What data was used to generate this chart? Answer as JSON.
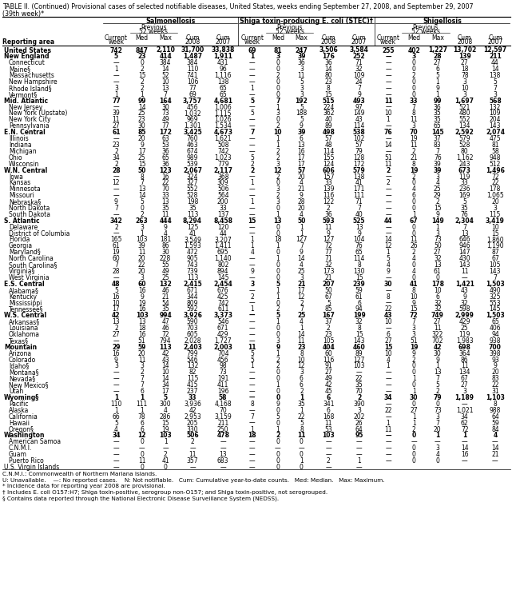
{
  "title_line1": "TABLE II. (Continued) Provisional cases of selected notifiable diseases, United States, weeks ending September 27, 2008, and September 29, 2007",
  "title_line2": "(39th week)*",
  "diseases": [
    "Salmonellosis",
    "Shiga toxin-producing E. coli (STEC)†",
    "Shigellosis"
  ],
  "reporting_areas": [
    "United States",
    "New England",
    "Connecticut",
    "Maine§",
    "Massachusetts",
    "New Hampshire",
    "Rhode Island§",
    "Vermont§",
    "Mid. Atlantic",
    "New Jersey",
    "New York (Upstate)",
    "New York City",
    "Pennsylvania",
    "E.N. Central",
    "Illinois",
    "Indiana",
    "Michigan",
    "Ohio",
    "Wisconsin",
    "W.N. Central",
    "Iowa",
    "Kansas",
    "Minnesota",
    "Missouri",
    "Nebraska§",
    "North Dakota",
    "South Dakota",
    "S. Atlantic",
    "Delaware",
    "District of Columbia",
    "Florida",
    "Georgia",
    "Maryland§",
    "North Carolina",
    "South Carolina§",
    "Virginia§",
    "West Virginia",
    "E.S. Central",
    "Alabama§",
    "Kentucky",
    "Mississippi",
    "Tennessee§",
    "W.S. Central",
    "Arkansas§",
    "Louisiana",
    "Oklahoma",
    "Texas§",
    "Mountain",
    "Arizona",
    "Colorado",
    "Idaho§",
    "Montana§",
    "Nevada§",
    "New Mexico§",
    "Utah",
    "Wyoming§",
    "Pacific",
    "Alaska",
    "California",
    "Hawaii",
    "Oregon§",
    "Washington",
    "American Samoa",
    "C.N.M.I.",
    "Guam",
    "Puerto Rico",
    "U.S. Virgin Islands"
  ],
  "bold_rows": [
    0,
    1,
    8,
    13,
    19,
    27,
    37,
    42,
    47,
    55,
    61
  ],
  "indent_rows": [
    2,
    3,
    4,
    5,
    6,
    7,
    9,
    10,
    11,
    12,
    14,
    15,
    16,
    17,
    18,
    20,
    21,
    22,
    23,
    24,
    25,
    26,
    28,
    29,
    30,
    31,
    32,
    33,
    34,
    35,
    36,
    38,
    39,
    40,
    41,
    43,
    44,
    45,
    46,
    48,
    49,
    50,
    51,
    52,
    53,
    54,
    56,
    57,
    58,
    59,
    60,
    62,
    63,
    64,
    65
  ],
  "salmonellosis": [
    [
      "742",
      "847",
      "2,110",
      "31,700",
      "33,838"
    ],
    [
      "5",
      "23",
      "414",
      "1,487",
      "1,911"
    ],
    [
      "—",
      "0",
      "384",
      "384",
      "431"
    ],
    [
      "1",
      "2",
      "14",
      "110",
      "96"
    ],
    [
      "—",
      "15",
      "52",
      "741",
      "1,116"
    ],
    [
      "—",
      "2",
      "10",
      "106",
      "138"
    ],
    [
      "3",
      "2",
      "13",
      "77",
      "65"
    ],
    [
      "1",
      "1",
      "7",
      "69",
      "65"
    ],
    [
      "77",
      "99",
      "164",
      "3,757",
      "4,681"
    ],
    [
      "—",
      "14",
      "30",
      "456",
      "1,006"
    ],
    [
      "39",
      "25",
      "73",
      "1,032",
      "1,115"
    ],
    [
      "11",
      "23",
      "49",
      "969",
      "1,026"
    ],
    [
      "27",
      "30",
      "77",
      "1,301",
      "1,534"
    ],
    [
      "61",
      "85",
      "172",
      "3,425",
      "4,673"
    ],
    [
      "—",
      "20",
      "63",
      "760",
      "1,621"
    ],
    [
      "23",
      "9",
      "53",
      "463",
      "508"
    ],
    [
      "2",
      "17",
      "36",
      "674",
      "742"
    ],
    [
      "34",
      "25",
      "65",
      "989",
      "1,023"
    ],
    [
      "2",
      "15",
      "36",
      "539",
      "779"
    ],
    [
      "28",
      "50",
      "123",
      "2,067",
      "2,117"
    ],
    [
      "—",
      "8",
      "16",
      "324",
      "368"
    ],
    [
      "12",
      "7",
      "22",
      "327",
      "309"
    ],
    [
      "—",
      "13",
      "70",
      "552",
      "506"
    ],
    [
      "—",
      "14",
      "33",
      "528",
      "564"
    ],
    [
      "9",
      "5",
      "13",
      "198",
      "200"
    ],
    [
      "7",
      "0",
      "35",
      "35",
      "33"
    ],
    [
      "—",
      "2",
      "11",
      "113",
      "137"
    ],
    [
      "342",
      "263",
      "444",
      "8,294",
      "8,458"
    ],
    [
      "2",
      "3",
      "9",
      "125",
      "120"
    ],
    [
      "—",
      "1",
      "4",
      "41",
      "44"
    ],
    [
      "165",
      "103",
      "181",
      "3,549",
      "3,207"
    ],
    [
      "61",
      "39",
      "86",
      "1,593",
      "1,411"
    ],
    [
      "19",
      "11",
      "30",
      "472",
      "695"
    ],
    [
      "60",
      "20",
      "228",
      "905",
      "1,140"
    ],
    [
      "7",
      "22",
      "55",
      "743",
      "802"
    ],
    [
      "28",
      "20",
      "49",
      "739",
      "894"
    ],
    [
      "—",
      "3",
      "25",
      "113",
      "145"
    ],
    [
      "48",
      "60",
      "132",
      "2,415",
      "2,454"
    ],
    [
      "5",
      "16",
      "46",
      "671",
      "676"
    ],
    [
      "16",
      "9",
      "21",
      "344",
      "425"
    ],
    [
      "10",
      "19",
      "54",
      "809",
      "742"
    ],
    [
      "17",
      "16",
      "35",
      "592",
      "611"
    ],
    [
      "42",
      "103",
      "994",
      "3,926",
      "3,373"
    ],
    [
      "13",
      "13",
      "47",
      "590",
      "546"
    ],
    [
      "2",
      "18",
      "46",
      "703",
      "671"
    ],
    [
      "27",
      "16",
      "72",
      "605",
      "429"
    ],
    [
      "—",
      "51",
      "794",
      "2,028",
      "1,727"
    ],
    [
      "29",
      "59",
      "113",
      "2,403",
      "2,003"
    ],
    [
      "16",
      "20",
      "42",
      "799",
      "704"
    ],
    [
      "9",
      "11",
      "43",
      "546",
      "456"
    ],
    [
      "3",
      "3",
      "14",
      "132",
      "98"
    ],
    [
      "—",
      "2",
      "10",
      "82",
      "73"
    ],
    [
      "—",
      "7",
      "14",
      "115",
      "191"
    ],
    [
      "—",
      "7",
      "34",
      "415",
      "411"
    ],
    [
      "—",
      "6",
      "17",
      "237",
      "196"
    ],
    [
      "1",
      "1",
      "5",
      "33",
      "58"
    ],
    [
      "110",
      "111",
      "300",
      "3,936",
      "4,168"
    ],
    [
      "1",
      "1",
      "4",
      "42",
      "70"
    ],
    [
      "66",
      "78",
      "286",
      "2,953",
      "3,159"
    ],
    [
      "5",
      "6",
      "15",
      "205",
      "211"
    ],
    [
      "4",
      "6",
      "19",
      "330",
      "250"
    ],
    [
      "34",
      "12",
      "103",
      "506",
      "478"
    ],
    [
      "—",
      "0",
      "1",
      "2",
      "—"
    ],
    [
      "—",
      "—",
      "—",
      "—",
      "—"
    ],
    [
      "—",
      "0",
      "2",
      "11",
      "13"
    ],
    [
      "—",
      "11",
      "41",
      "357",
      "683"
    ],
    [
      "—",
      "0",
      "0",
      "—",
      "—"
    ]
  ],
  "stec": [
    [
      "69",
      "81",
      "247",
      "3,506",
      "3,584"
    ],
    [
      "1",
      "3",
      "39",
      "176",
      "252"
    ],
    [
      "—",
      "0",
      "36",
      "36",
      "71"
    ],
    [
      "—",
      "0",
      "3",
      "14",
      "32"
    ],
    [
      "—",
      "2",
      "11",
      "80",
      "109"
    ],
    [
      "—",
      "0",
      "5",
      "23",
      "24"
    ],
    [
      "1",
      "0",
      "3",
      "8",
      "7"
    ],
    [
      "—",
      "0",
      "3",
      "15",
      "9"
    ],
    [
      "5",
      "7",
      "192",
      "515",
      "493"
    ],
    [
      "—",
      "1",
      "5",
      "224",
      "97"
    ],
    [
      "5",
      "3",
      "188",
      "362",
      "149"
    ],
    [
      "—",
      "0",
      "5",
      "40",
      "43"
    ],
    [
      "—",
      "2",
      "9",
      "89",
      "114"
    ],
    [
      "7",
      "10",
      "39",
      "498",
      "538"
    ],
    [
      "—",
      "1",
      "6",
      "57",
      "102"
    ],
    [
      "—",
      "1",
      "13",
      "48",
      "57"
    ],
    [
      "—",
      "2",
      "16",
      "114",
      "79"
    ],
    [
      "5",
      "2",
      "17",
      "155",
      "128"
    ],
    [
      "2",
      "3",
      "17",
      "124",
      "172"
    ],
    [
      "2",
      "12",
      "57",
      "606",
      "579"
    ],
    [
      "—",
      "2",
      "20",
      "157",
      "138"
    ],
    [
      "1",
      "0",
      "4",
      "33",
      "41"
    ],
    [
      "—",
      "3",
      "21",
      "139",
      "171"
    ],
    [
      "—",
      "2",
      "9",
      "116",
      "111"
    ],
    [
      "1",
      "3",
      "28",
      "122",
      "71"
    ],
    [
      "—",
      "0",
      "20",
      "2",
      "7"
    ],
    [
      "—",
      "1",
      "4",
      "36",
      "40"
    ],
    [
      "15",
      "13",
      "50",
      "593",
      "525"
    ],
    [
      "—",
      "0",
      "1",
      "11",
      "13"
    ],
    [
      "—",
      "0",
      "1",
      "9",
      "9"
    ],
    [
      "1",
      "18",
      "127",
      "127",
      "104"
    ],
    [
      "1",
      "1",
      "7",
      "72",
      "76"
    ],
    [
      "4",
      "0",
      "9",
      "77",
      "65"
    ],
    [
      "—",
      "1",
      "14",
      "71",
      "114"
    ],
    [
      "—",
      "0",
      "4",
      "32",
      "8"
    ],
    [
      "9",
      "0",
      "25",
      "173",
      "130"
    ],
    [
      "—",
      "0",
      "3",
      "21",
      "15"
    ],
    [
      "3",
      "5",
      "21",
      "207",
      "239"
    ],
    [
      "—",
      "1",
      "17",
      "50",
      "59"
    ],
    [
      "2",
      "1",
      "12",
      "67",
      "61"
    ],
    [
      "—",
      "0",
      "2",
      "5",
      "6"
    ],
    [
      "1",
      "2",
      "7",
      "85",
      "94"
    ],
    [
      "—",
      "5",
      "25",
      "167",
      "199"
    ],
    [
      "—",
      "1",
      "4",
      "37",
      "32"
    ],
    [
      "—",
      "0",
      "1",
      "2",
      "8"
    ],
    [
      "—",
      "0",
      "14",
      "23",
      "15"
    ],
    [
      "—",
      "3",
      "11",
      "105",
      "143"
    ],
    [
      "11",
      "9",
      "23",
      "404",
      "460"
    ],
    [
      "5",
      "1",
      "8",
      "60",
      "89"
    ],
    [
      "5",
      "2",
      "10",
      "116",
      "127"
    ],
    [
      "1",
      "2",
      "12",
      "91",
      "103"
    ],
    [
      "—",
      "0",
      "3",
      "27",
      "—"
    ],
    [
      "—",
      "0",
      "6",
      "49",
      "22"
    ],
    [
      "—",
      "1",
      "6",
      "42",
      "35"
    ],
    [
      "—",
      "0",
      "2",
      "45",
      "70"
    ],
    [
      "—",
      "0",
      "1",
      "6",
      "2"
    ],
    [
      "8",
      "9",
      "35",
      "341",
      "390"
    ],
    [
      "—",
      "0",
      "1",
      "6",
      "3"
    ],
    [
      "7",
      "5",
      "22",
      "168",
      "202"
    ],
    [
      "—",
      "0",
      "5",
      "11",
      "26"
    ],
    [
      "1",
      "1",
      "8",
      "53",
      "64"
    ],
    [
      "18",
      "2",
      "11",
      "103",
      "95"
    ],
    [
      "—",
      "0",
      "0",
      "—",
      "—"
    ],
    [
      "—",
      "—",
      "—",
      "—",
      "—"
    ],
    [
      "—",
      "0",
      "0",
      "—",
      "—"
    ],
    [
      "—",
      "0",
      "1",
      "2",
      "1"
    ],
    [
      "—",
      "0",
      "0",
      "—",
      "—"
    ]
  ],
  "shigellosis": [
    [
      "255",
      "402",
      "1,227",
      "13,702",
      "12,597"
    ],
    [
      "—",
      "3",
      "28",
      "139",
      "211"
    ],
    [
      "—",
      "0",
      "27",
      "27",
      "44"
    ],
    [
      "—",
      "0",
      "6",
      "18",
      "14"
    ],
    [
      "—",
      "2",
      "5",
      "78",
      "138"
    ],
    [
      "—",
      "0",
      "1",
      "3",
      "5"
    ],
    [
      "—",
      "0",
      "9",
      "10",
      "7"
    ],
    [
      "—",
      "0",
      "1",
      "3",
      "3"
    ],
    [
      "11",
      "33",
      "99",
      "1,697",
      "568"
    ],
    [
      "—",
      "7",
      "36",
      "521",
      "132"
    ],
    [
      "10",
      "8",
      "35",
      "480",
      "109"
    ],
    [
      "1",
      "11",
      "35",
      "552",
      "204"
    ],
    [
      "—",
      "3",
      "65",
      "134",
      "143"
    ],
    [
      "76",
      "70",
      "145",
      "2,592",
      "2,074"
    ],
    [
      "—",
      "19",
      "37",
      "579",
      "475"
    ],
    [
      "14",
      "11",
      "83",
      "528",
      "81"
    ],
    [
      "—",
      "2",
      "7",
      "80",
      "58"
    ],
    [
      "51",
      "21",
      "76",
      "1,162",
      "948"
    ],
    [
      "11",
      "8",
      "39",
      "243",
      "512"
    ],
    [
      "2",
      "19",
      "39",
      "673",
      "1,496"
    ],
    [
      "—",
      "2",
      "3",
      "119",
      "72"
    ],
    [
      "2",
      "0",
      "4",
      "33",
      "22"
    ],
    [
      "—",
      "4",
      "25",
      "236",
      "178"
    ],
    [
      "—",
      "6",
      "29",
      "169",
      "1,065"
    ],
    [
      "—",
      "0",
      "2",
      "5",
      "20"
    ],
    [
      "—",
      "0",
      "15",
      "35",
      "3"
    ],
    [
      "—",
      "1",
      "9",
      "76",
      "115"
    ],
    [
      "44",
      "67",
      "149",
      "2,304",
      "3,419"
    ],
    [
      "—",
      "0",
      "1",
      "7",
      "10"
    ],
    [
      "—",
      "0",
      "3",
      "13",
      "15"
    ],
    [
      "14",
      "11",
      "73",
      "646",
      "1,860"
    ],
    [
      "12",
      "26",
      "50",
      "946",
      "1,190"
    ],
    [
      "1",
      "2",
      "27",
      "147",
      "87"
    ],
    [
      "5",
      "4",
      "32",
      "430",
      "67"
    ],
    [
      "4",
      "0",
      "13",
      "143",
      "105"
    ],
    [
      "9",
      "4",
      "61",
      "11",
      "143"
    ],
    [
      "—",
      "0",
      "0",
      "—",
      "7"
    ],
    [
      "30",
      "41",
      "178",
      "1,421",
      "1,503"
    ],
    [
      "—",
      "8",
      "10",
      "43",
      "490"
    ],
    [
      "8",
      "10",
      "6",
      "9",
      "325"
    ],
    [
      "—",
      "9",
      "32",
      "32",
      "553"
    ],
    [
      "22",
      "15",
      "32",
      "598",
      "145"
    ],
    [
      "43",
      "72",
      "749",
      "2,999",
      "1,503"
    ],
    [
      "10",
      "7",
      "27",
      "429",
      "65"
    ],
    [
      "—",
      "3",
      "11",
      "25",
      "406"
    ],
    [
      "6",
      "3",
      "322",
      "119",
      "94"
    ],
    [
      "27",
      "51",
      "702",
      "1,983",
      "938"
    ],
    [
      "15",
      "19",
      "42",
      "698",
      "700"
    ],
    [
      "10",
      "9",
      "30",
      "364",
      "398"
    ],
    [
      "4",
      "2",
      "9",
      "86",
      "93"
    ],
    [
      "1",
      "0",
      "1",
      "11",
      "9"
    ],
    [
      "—",
      "0",
      "13",
      "134",
      "20"
    ],
    [
      "—",
      "1",
      "7",
      "67",
      "83"
    ],
    [
      "—",
      "0",
      "5",
      "27",
      "22"
    ],
    [
      "—",
      "1",
      "2",
      "3",
      "31"
    ],
    [
      "34",
      "30",
      "79",
      "1,189",
      "1,103"
    ],
    [
      "—",
      "0",
      "0",
      "—",
      "8"
    ],
    [
      "22",
      "27",
      "73",
      "1,021",
      "988"
    ],
    [
      "—",
      "1",
      "3",
      "34",
      "64"
    ],
    [
      "1",
      "1",
      "7",
      "62",
      "59"
    ],
    [
      "11",
      "2",
      "20",
      "72",
      "84"
    ],
    [
      "—",
      "0",
      "1",
      "1",
      "4"
    ],
    [
      "—",
      "—",
      "—",
      "—",
      "—"
    ],
    [
      "—",
      "0",
      "3",
      "14",
      "14"
    ],
    [
      "—",
      "0",
      "4",
      "16",
      "21"
    ],
    [
      "—",
      "0",
      "0",
      "—",
      "—"
    ]
  ],
  "footnotes": [
    "C.N.M.I.: Commonwealth of Northern Mariana Islands.",
    "U: Unavailable.    —: No reported cases.    N: Not notifiable.   Cum: Cumulative year-to-date counts.   Med: Median.   Max: Maximum.",
    "* Incidence data for reporting year 2008 are provisional.",
    "† Includes E. coli O157:H7; Shiga toxin-positive, serogroup non-O157; and Shiga toxin-positive, not serogrouped.",
    "§ Contains data reported through the National Electronic Disease Surveillance System (NEDSS)."
  ]
}
